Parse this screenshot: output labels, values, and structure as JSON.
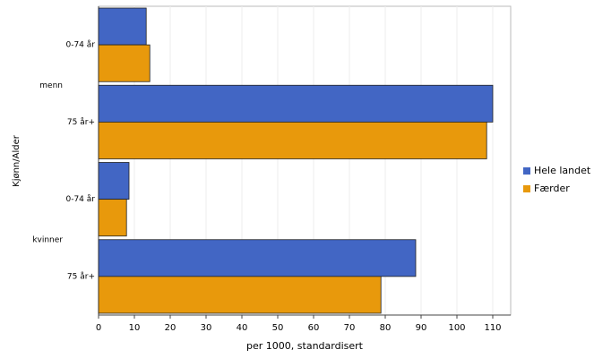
{
  "chart_data": {
    "type": "bar",
    "orientation": "horizontal",
    "groups": [
      {
        "name": "menn",
        "categories": [
          "0-74 år",
          "75 år+"
        ]
      },
      {
        "name": "kvinner",
        "categories": [
          "0-74 år",
          "75 år+"
        ]
      }
    ],
    "series": [
      {
        "name": "Hele landet",
        "color": "#4266c4",
        "values": [
          13.3,
          110,
          8.5,
          88.5
        ]
      },
      {
        "name": "Færder",
        "color": "#e8990c",
        "values": [
          14.3,
          108.3,
          7.8,
          78.8
        ]
      }
    ],
    "xlabel": "per 1000, standardisert",
    "ylabel": "Kjønn/Alder",
    "xlim": [
      0,
      115
    ],
    "xticks": [
      0,
      10,
      20,
      30,
      40,
      50,
      60,
      70,
      80,
      90,
      100,
      110
    ],
    "grid": true,
    "legend": "right"
  }
}
